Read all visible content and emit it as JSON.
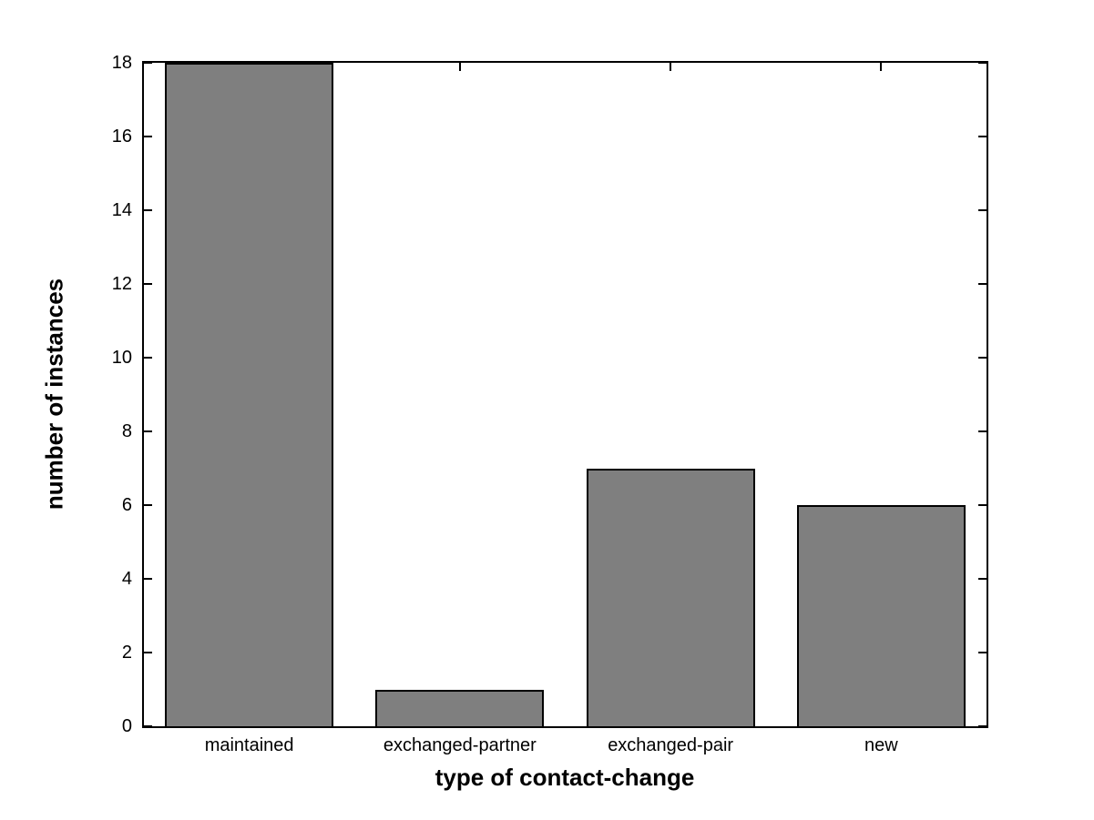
{
  "figure": {
    "background_color": "#ffffff"
  },
  "chart_data": {
    "type": "bar",
    "categories": [
      "maintained",
      "exchanged-partner",
      "exchanged-pair",
      "new"
    ],
    "values": [
      18,
      1,
      7,
      6
    ],
    "xlabel": "type of contact-change",
    "ylabel": "number of instances",
    "ylim": [
      0,
      18
    ],
    "yticks": [
      0,
      2,
      4,
      6,
      8,
      10,
      12,
      14,
      16,
      18
    ],
    "bar_color": "#7f7f7f",
    "bar_edge_color": "#000000",
    "axis_color": "#000000",
    "bar_width_fraction": 0.8,
    "grid": false,
    "legend_position": "none"
  }
}
